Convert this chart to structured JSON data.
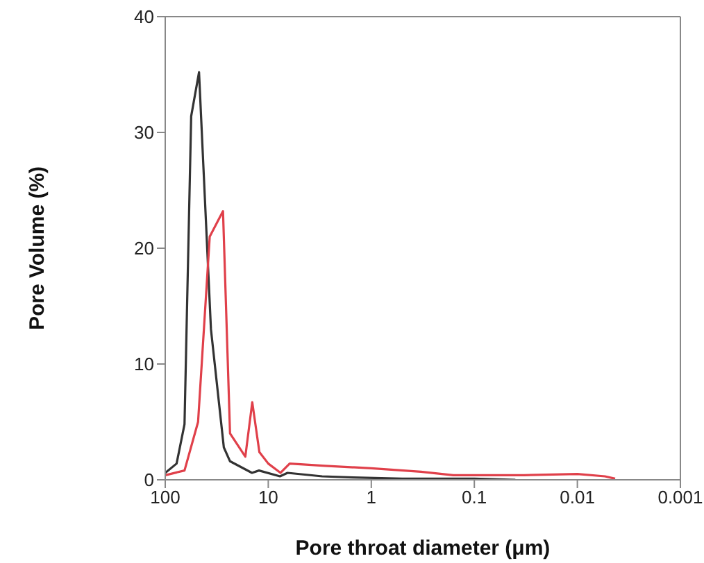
{
  "chart_data": {
    "type": "line",
    "xlabel": "Pore throat diameter (μm)",
    "ylabel": "Pore Volume (%)",
    "log": "x",
    "xlim": [
      100,
      0.001
    ],
    "xticks": [
      100,
      10,
      1,
      0.1,
      0.01,
      0.001
    ],
    "ylim": [
      0,
      40
    ],
    "yticks": [
      0,
      10,
      20,
      30,
      40
    ],
    "marker": "none",
    "line_style": "solid",
    "series": [
      {
        "color": "#333333",
        "x": [
          100,
          77.6,
          65,
          56,
          47,
          36,
          27,
          23.5,
          14.4,
          12.3,
          7.7,
          6.5,
          3,
          1.5,
          0.5,
          0.1,
          0.04
        ],
        "values": [
          0.6,
          1.4,
          4.8,
          31.4,
          35.2,
          13,
          2.8,
          1.6,
          0.6,
          0.8,
          0.3,
          0.6,
          0.3,
          0.2,
          0.1,
          0.1,
          0
        ]
      },
      {
        "color": "#e0404a",
        "x": [
          100,
          65,
          48,
          37,
          27.5,
          23.5,
          16.7,
          14.3,
          12.2,
          10,
          7.6,
          6.2,
          2.8,
          1,
          0.33,
          0.16,
          0.033,
          0.01,
          0.0054,
          0.0043
        ],
        "values": [
          0.4,
          0.8,
          5,
          21,
          23.2,
          4,
          2,
          6.7,
          2.4,
          1.4,
          0.6,
          1.4,
          1.2,
          1,
          0.7,
          0.4,
          0.4,
          0.5,
          0.3,
          0.1
        ]
      }
    ]
  }
}
